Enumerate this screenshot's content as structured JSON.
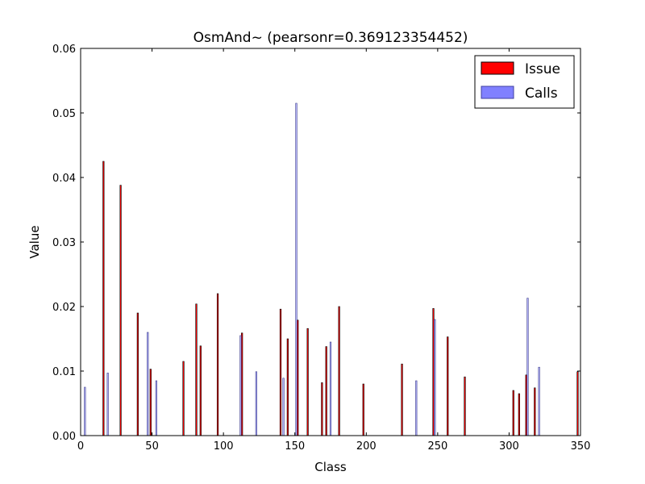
{
  "chart_data": {
    "type": "bar",
    "title": "OsmAnd~ (pearsonr=0.369123354452)",
    "xlabel": "Class",
    "ylabel": "Value",
    "xlim": [
      0,
      350
    ],
    "ylim": [
      0,
      0.06
    ],
    "xticks": [
      "0",
      "50",
      "100",
      "150",
      "200",
      "250",
      "300",
      "350"
    ],
    "yticks": [
      "0.00",
      "0.01",
      "0.02",
      "0.03",
      "0.04",
      "0.05",
      "0.06"
    ],
    "legend_position": "top-right",
    "grid": false,
    "series": [
      {
        "name": "Issue",
        "color": "#ff0000",
        "alpha": 1.0,
        "values": [
          {
            "x": 16,
            "y": 0.0425
          },
          {
            "x": 28,
            "y": 0.0388
          },
          {
            "x": 40,
            "y": 0.019
          },
          {
            "x": 49,
            "y": 0.0103
          },
          {
            "x": 72,
            "y": 0.0115
          },
          {
            "x": 81,
            "y": 0.0204
          },
          {
            "x": 84,
            "y": 0.0139
          },
          {
            "x": 96,
            "y": 0.022
          },
          {
            "x": 113,
            "y": 0.0159
          },
          {
            "x": 140,
            "y": 0.0196
          },
          {
            "x": 145,
            "y": 0.015
          },
          {
            "x": 152,
            "y": 0.0179
          },
          {
            "x": 159,
            "y": 0.0166
          },
          {
            "x": 169,
            "y": 0.0082
          },
          {
            "x": 172,
            "y": 0.0138
          },
          {
            "x": 181,
            "y": 0.02
          },
          {
            "x": 198,
            "y": 0.008
          },
          {
            "x": 225,
            "y": 0.0111
          },
          {
            "x": 247,
            "y": 0.0197
          },
          {
            "x": 257,
            "y": 0.0153
          },
          {
            "x": 269,
            "y": 0.0091
          },
          {
            "x": 303,
            "y": 0.007
          },
          {
            "x": 307,
            "y": 0.0065
          },
          {
            "x": 312,
            "y": 0.0094
          },
          {
            "x": 318,
            "y": 0.0074
          },
          {
            "x": 348,
            "y": 0.0099
          }
        ]
      },
      {
        "name": "Calls",
        "color": "#8080ff",
        "alpha": 0.55,
        "values": [
          {
            "x": 3,
            "y": 0.0075
          },
          {
            "x": 19,
            "y": 0.0097
          },
          {
            "x": 47,
            "y": 0.016
          },
          {
            "x": 53,
            "y": 0.0085
          },
          {
            "x": 112,
            "y": 0.0155
          },
          {
            "x": 123,
            "y": 0.0099
          },
          {
            "x": 142,
            "y": 0.0089
          },
          {
            "x": 151,
            "y": 0.0515
          },
          {
            "x": 175,
            "y": 0.0145
          },
          {
            "x": 235,
            "y": 0.0085
          },
          {
            "x": 248,
            "y": 0.018
          },
          {
            "x": 313,
            "y": 0.0213
          },
          {
            "x": 321,
            "y": 0.0106
          }
        ]
      }
    ]
  }
}
